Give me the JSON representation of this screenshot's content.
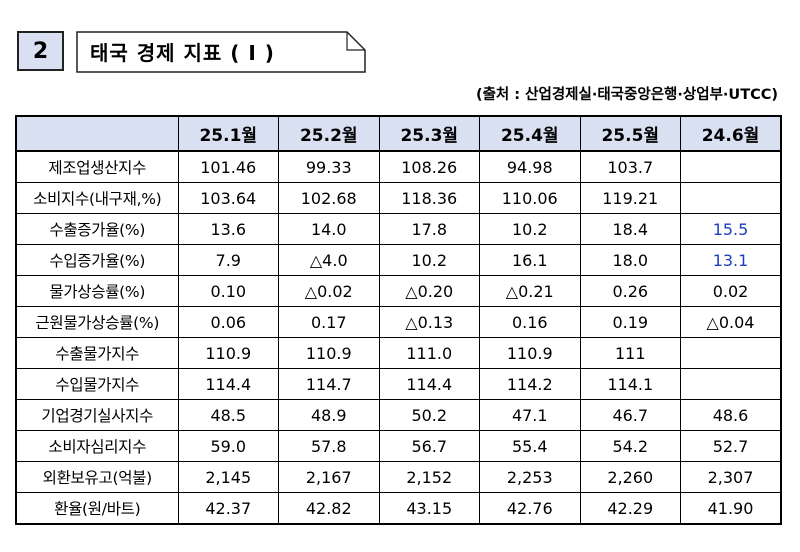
{
  "section": {
    "number": "2",
    "title": "태국 경제 지표 ( I )"
  },
  "source": "(출처 : 산업경제실·태국중앙은행·상업부·UTCC)",
  "table": {
    "corner": "",
    "columns": [
      "25.1월",
      "25.2월",
      "25.3월",
      "25.4월",
      "25.5월",
      "24.6월"
    ],
    "rows": [
      {
        "label": "제조업생산지수",
        "values": [
          "101.46",
          "99.33",
          "108.26",
          "94.98",
          "103.7",
          ""
        ]
      },
      {
        "label": "소비지수(내구재,%)",
        "values": [
          "103.64",
          "102.68",
          "118.36",
          "110.06",
          "119.21",
          ""
        ]
      },
      {
        "label": "수출증가율(%)",
        "values": [
          "13.6",
          "14.0",
          "17.8",
          "10.2",
          "18.4",
          "15.5"
        ]
      },
      {
        "label": "수입증가율(%)",
        "values": [
          "7.9",
          "△4.0",
          "10.2",
          "16.1",
          "18.0",
          "13.1"
        ]
      },
      {
        "label": "물가상승률(%)",
        "values": [
          "0.10",
          "△0.02",
          "△0.20",
          "△0.21",
          "0.26",
          "0.02"
        ]
      },
      {
        "label": "근원물가상승률(%)",
        "values": [
          "0.06",
          "0.17",
          "△0.13",
          "0.16",
          "0.19",
          "△0.04"
        ]
      },
      {
        "label": "수출물가지수",
        "values": [
          "110.9",
          "110.9",
          "111.0",
          "110.9",
          "111",
          ""
        ]
      },
      {
        "label": "수입물가지수",
        "values": [
          "114.4",
          "114.7",
          "114.4",
          "114.2",
          "114.1",
          ""
        ]
      },
      {
        "label": "기업경기실사지수",
        "values": [
          "48.5",
          "48.9",
          "50.2",
          "47.1",
          "46.7",
          "48.6"
        ]
      },
      {
        "label": "소비자심리지수",
        "values": [
          "59.0",
          "57.8",
          "56.7",
          "55.4",
          "54.2",
          "52.7"
        ]
      },
      {
        "label": "외환보유고(억불)",
        "values": [
          "2,145",
          "2,167",
          "2,152",
          "2,253",
          "2,260",
          "2,307"
        ]
      },
      {
        "label": "환율(원/바트)",
        "values": [
          "42.37",
          "42.82",
          "43.15",
          "42.76",
          "42.29",
          "41.90"
        ]
      }
    ]
  },
  "colors": {
    "header_bg": "#d9e0f1",
    "highlight_text": "#1f3dbf"
  }
}
